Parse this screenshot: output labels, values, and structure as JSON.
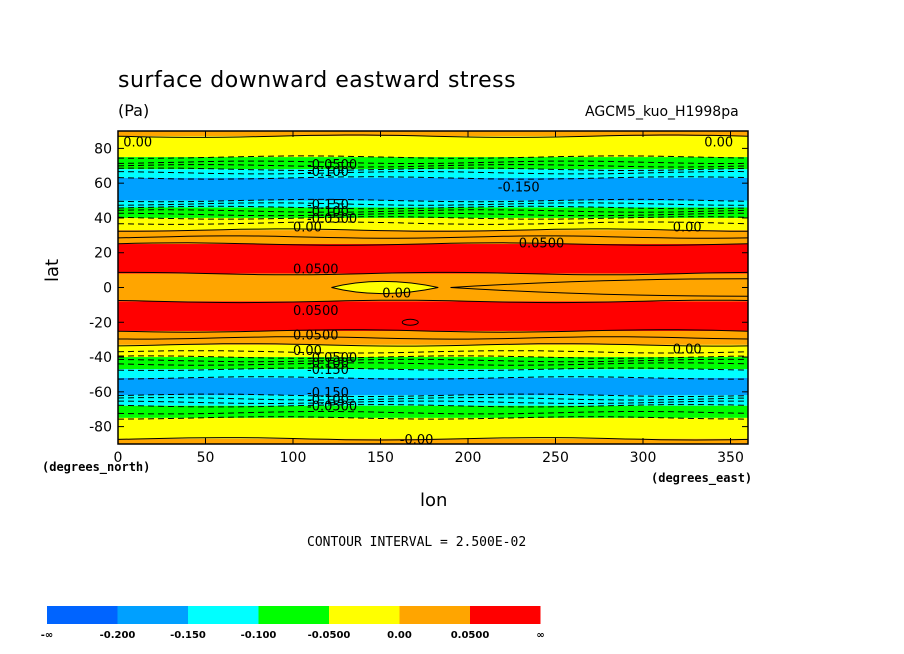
{
  "chart_data": {
    "type": "heatmap",
    "title": "surface downward eastward stress",
    "units": "(Pa)",
    "model": "AGCM5_kuo_H1998pa",
    "xlabel": "lon",
    "ylabel": "lat",
    "x_units": "(degrees_east)",
    "y_units": "(degrees_north)",
    "xlim": [
      0,
      360
    ],
    "ylim": [
      -90,
      90
    ],
    "x_ticks": [
      0,
      50,
      100,
      150,
      200,
      250,
      300,
      350
    ],
    "y_ticks": [
      80,
      60,
      40,
      20,
      0,
      -20,
      -40,
      -60,
      -80
    ],
    "contour_interval_text": "CONTOUR INTERVAL = 2.500E-02",
    "colorbar": {
      "colors": [
        "#0064ff",
        "#00a0ff",
        "#00ffff",
        "#00ff00",
        "#ffff00",
        "#ffa500",
        "#ff0000"
      ],
      "labels": [
        "-∞",
        "-0.200",
        "-0.150",
        "-0.100",
        "-0.0500",
        "0.00",
        "0.0500",
        "∞"
      ]
    },
    "bands": [
      {
        "lat_top": 90,
        "lat_bottom": 87,
        "color": "#ffa500"
      },
      {
        "lat_top": 87,
        "lat_bottom": 75,
        "color": "#ffff00"
      },
      {
        "lat_top": 75,
        "lat_bottom": 68,
        "color": "#00ff00"
      },
      {
        "lat_top": 68,
        "lat_bottom": 63,
        "color": "#00ffff"
      },
      {
        "lat_top": 63,
        "lat_bottom": 50,
        "color": "#00a0ff"
      },
      {
        "lat_top": 50,
        "lat_bottom": 46,
        "color": "#00ffff"
      },
      {
        "lat_top": 46,
        "lat_bottom": 40,
        "color": "#00ff00"
      },
      {
        "lat_top": 40,
        "lat_bottom": 33,
        "color": "#ffff00"
      },
      {
        "lat_top": 33,
        "lat_bottom": 25,
        "color": "#ffa500"
      },
      {
        "lat_top": 25,
        "lat_bottom": 8,
        "color": "#ff0000"
      },
      {
        "lat_top": 8,
        "lat_bottom": -8,
        "color": "#ffa500"
      },
      {
        "lat_top": -8,
        "lat_bottom": -25,
        "color": "#ff0000"
      },
      {
        "lat_top": -25,
        "lat_bottom": -33,
        "color": "#ffa500"
      },
      {
        "lat_top": -33,
        "lat_bottom": -40,
        "color": "#ffff00"
      },
      {
        "lat_top": -40,
        "lat_bottom": -47,
        "color": "#00ff00"
      },
      {
        "lat_top": -47,
        "lat_bottom": -52,
        "color": "#00ffff"
      },
      {
        "lat_top": -52,
        "lat_bottom": -62,
        "color": "#00a0ff"
      },
      {
        "lat_top": -62,
        "lat_bottom": -68,
        "color": "#00ffff"
      },
      {
        "lat_top": -68,
        "lat_bottom": -75,
        "color": "#00ff00"
      },
      {
        "lat_top": -75,
        "lat_bottom": -87,
        "color": "#ffff00"
      },
      {
        "lat_top": -87,
        "lat_bottom": -90,
        "color": "#ffa500"
      }
    ],
    "contours": [
      {
        "lat": 87,
        "dashed": false
      },
      {
        "lat": 75,
        "dashed": true
      },
      {
        "lat": 72,
        "dashed": true
      },
      {
        "lat": 70,
        "dashed": true
      },
      {
        "lat": 68,
        "dashed": true
      },
      {
        "lat": 66,
        "dashed": true
      },
      {
        "lat": 63,
        "dashed": true
      },
      {
        "lat": 50,
        "dashed": true
      },
      {
        "lat": 48,
        "dashed": true
      },
      {
        "lat": 46,
        "dashed": true
      },
      {
        "lat": 44,
        "dashed": true
      },
      {
        "lat": 42,
        "dashed": true
      },
      {
        "lat": 40,
        "dashed": true
      },
      {
        "lat": 37,
        "dashed": true
      },
      {
        "lat": 33,
        "dashed": false
      },
      {
        "lat": 29,
        "dashed": false
      },
      {
        "lat": 25,
        "dashed": false
      },
      {
        "lat": 8,
        "dashed": false
      },
      {
        "lat": -8,
        "dashed": false
      },
      {
        "lat": -25,
        "dashed": false
      },
      {
        "lat": -29,
        "dashed": false
      },
      {
        "lat": -33,
        "dashed": false
      },
      {
        "lat": -37,
        "dashed": true
      },
      {
        "lat": -40,
        "dashed": true
      },
      {
        "lat": -42,
        "dashed": true
      },
      {
        "lat": -44,
        "dashed": true
      },
      {
        "lat": -47,
        "dashed": true
      },
      {
        "lat": -52,
        "dashed": true
      },
      {
        "lat": -62,
        "dashed": true
      },
      {
        "lat": -64,
        "dashed": true
      },
      {
        "lat": -66,
        "dashed": true
      },
      {
        "lat": -68,
        "dashed": true
      },
      {
        "lat": -72,
        "dashed": true
      },
      {
        "lat": -75,
        "dashed": true
      },
      {
        "lat": -87,
        "dashed": false
      }
    ],
    "contour_labels": [
      {
        "text": "0.00",
        "lon": 3,
        "lat": 84
      },
      {
        "text": "0.00",
        "lon": 335,
        "lat": 84
      },
      {
        "text": "-0.0500",
        "lon": 108,
        "lat": 71
      },
      {
        "text": "-0.100",
        "lon": 108,
        "lat": 67
      },
      {
        "text": "-0.150",
        "lon": 217,
        "lat": 58
      },
      {
        "text": "-0.150",
        "lon": 108,
        "lat": 48
      },
      {
        "text": "-0.100",
        "lon": 108,
        "lat": 44
      },
      {
        "text": "-0.0500",
        "lon": 108,
        "lat": 40
      },
      {
        "text": "0.00",
        "lon": 100,
        "lat": 35
      },
      {
        "text": "0.00",
        "lon": 317,
        "lat": 35
      },
      {
        "text": "0.0500",
        "lon": 229,
        "lat": 26
      },
      {
        "text": "0.0500",
        "lon": 100,
        "lat": 11
      },
      {
        "text": "0.00",
        "lon": 151,
        "lat": -3
      },
      {
        "text": "0.0500",
        "lon": 100,
        "lat": -13
      },
      {
        "text": "0.0500",
        "lon": 100,
        "lat": -27
      },
      {
        "text": "0.00",
        "lon": 100,
        "lat": -36
      },
      {
        "text": "-0.0500",
        "lon": 108,
        "lat": -40
      },
      {
        "text": "-0.100",
        "lon": 108,
        "lat": -43
      },
      {
        "text": "-0.150",
        "lon": 108,
        "lat": -47
      },
      {
        "text": "0.00",
        "lon": 317,
        "lat": -35
      },
      {
        "text": "-0.150",
        "lon": 108,
        "lat": -60
      },
      {
        "text": "-0.100",
        "lon": 108,
        "lat": -64
      },
      {
        "text": "-0.0500",
        "lon": 108,
        "lat": -68
      },
      {
        "text": "-0.00",
        "lon": 161,
        "lat": -87
      }
    ]
  }
}
